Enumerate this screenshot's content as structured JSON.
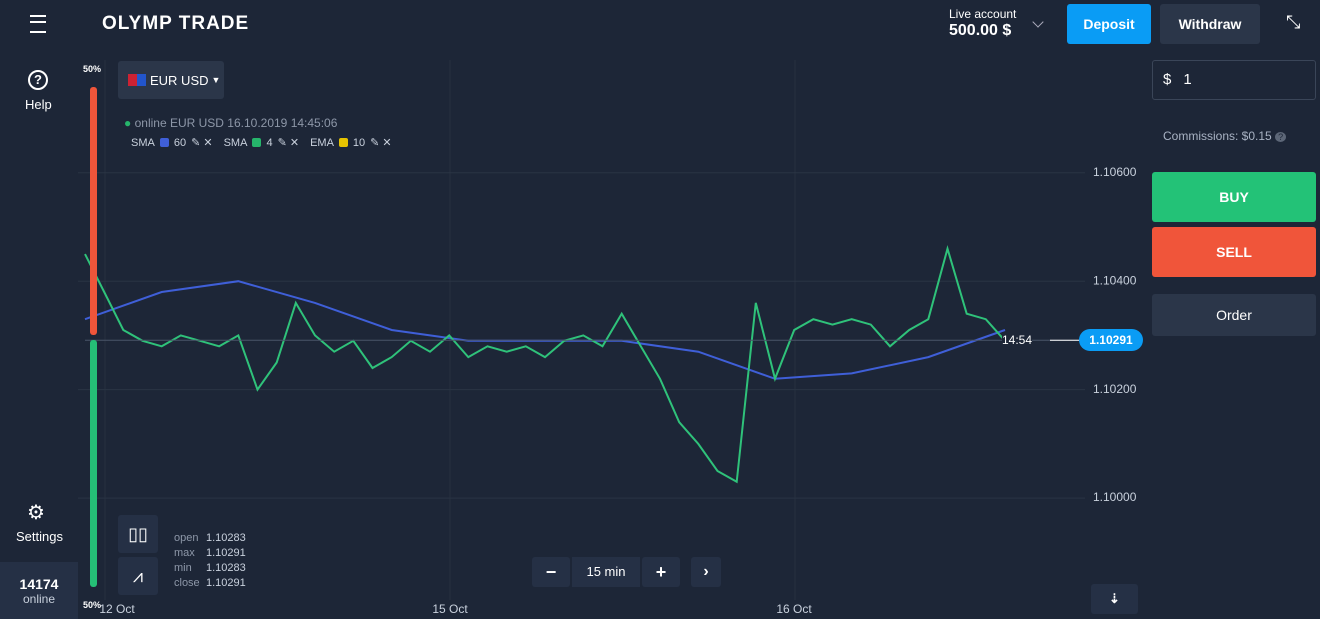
{
  "header": {
    "logo": "OLYMP TRADE",
    "account_label": "Live account",
    "balance": "500.00 $",
    "deposit": "Deposit",
    "withdraw": "Withdraw"
  },
  "sidebar": {
    "help": "Help",
    "settings": "Settings",
    "online_count": "14174",
    "online_label": "online"
  },
  "sentiment": {
    "top": "50%",
    "bottom": "50%"
  },
  "asset": "EUR USD",
  "status": "online EUR USD 16.10.2019 14:45:06",
  "indicators": [
    {
      "name": "SMA",
      "period": 60,
      "color": "#3f5fd8"
    },
    {
      "name": "SMA",
      "period": 4,
      "color": "#26b56b"
    },
    {
      "name": "EMA",
      "period": 10,
      "color": "#e6c300"
    }
  ],
  "ohlc": [
    [
      "open",
      "1.10283"
    ],
    [
      "max",
      "1.10291"
    ],
    [
      "min",
      "1.10283"
    ],
    [
      "close",
      "1.10291"
    ]
  ],
  "timeframe": "15 min",
  "chart_data": {
    "type": "line",
    "ylim": [
      1.09812,
      1.10808
    ],
    "yticks": [
      {
        "value": 1.106,
        "label": "1.10600"
      },
      {
        "value": 1.104,
        "label": "1.10400"
      },
      {
        "value": 1.102,
        "label": "1.10200"
      },
      {
        "value": 1.1,
        "label": "1.10000"
      }
    ],
    "x_labels": [
      "12 Oct",
      "15 Oct",
      "16 Oct"
    ],
    "series": [
      {
        "color": "#3f5fd8",
        "values": [
          1.1033,
          1.1038,
          1.104,
          1.1036,
          1.1031,
          1.1029,
          1.1029,
          1.1029,
          1.1027,
          1.1022,
          1.1023,
          1.1026,
          1.1031
        ]
      },
      {
        "color": "#2fc27a",
        "values": [
          1.1045,
          1.1038,
          1.1031,
          1.1029,
          1.1028,
          1.103,
          1.1029,
          1.1028,
          1.103,
          1.102,
          1.1025,
          1.1036,
          1.103,
          1.1027,
          1.1029,
          1.1024,
          1.1026,
          1.1029,
          1.1027,
          1.103,
          1.1026,
          1.1028,
          1.1027,
          1.1028,
          1.1026,
          1.1029,
          1.103,
          1.1028,
          1.1034,
          1.1028,
          1.1022,
          1.1014,
          1.101,
          1.1005,
          1.1003,
          1.1036,
          1.1022,
          1.1031,
          1.1033,
          1.1032,
          1.1033,
          1.1032,
          1.1028,
          1.1031,
          1.1033,
          1.1046,
          1.1034,
          1.1033,
          1.1029
        ]
      }
    ],
    "current_price": {
      "value": 1.10291,
      "label": "1.10291"
    },
    "timer": "14:54"
  },
  "order": {
    "currency": "$",
    "amount": "1",
    "commissions": "Commissions: $0.15",
    "buy": "BUY",
    "sell": "SELL",
    "order": "Order"
  }
}
